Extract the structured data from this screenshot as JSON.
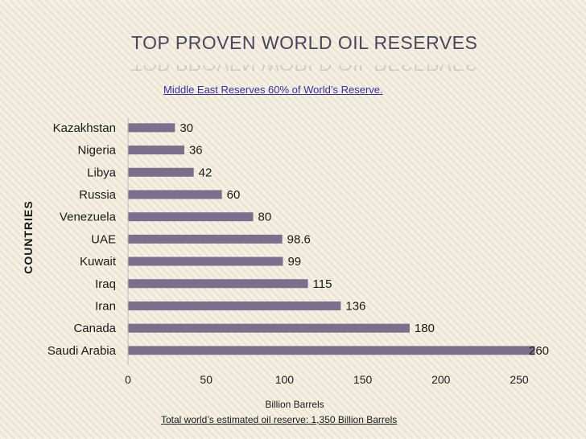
{
  "slide": {
    "title": "TOP PROVEN WORLD OIL RESERVES",
    "subtitle": "Middle East Reserves 60% of World’s Reserve.",
    "note": "Total world’s estimated oil reserve: 1,350 Billion Barrels"
  },
  "colors": {
    "background": "#f6f1e6",
    "bar": "#7a6f8c",
    "title": "#4a4560",
    "subtitle": "#3a2fa0"
  },
  "chart_data": {
    "type": "bar",
    "orientation": "horizontal",
    "categories": [
      "Kazakhstan",
      "Nigeria",
      "Libya",
      "Russia",
      "Venezuela",
      "UAE",
      "Kuwait",
      "Iraq",
      "Iran",
      "Canada",
      "Saudi Arabia"
    ],
    "values": [
      30,
      36,
      42,
      60,
      80,
      98.6,
      99,
      115,
      136,
      180,
      260
    ],
    "value_labels": [
      "30",
      "36",
      "42",
      "60",
      "80",
      "98.6",
      "99",
      "115",
      "136",
      "180",
      "260"
    ],
    "xlabel": "Billion Barrels",
    "ylabel": "COUNTRIES",
    "xlim": [
      0,
      260
    ],
    "xticks": [
      0,
      50,
      100,
      150,
      200,
      250
    ],
    "grid": false,
    "legend": "none"
  }
}
